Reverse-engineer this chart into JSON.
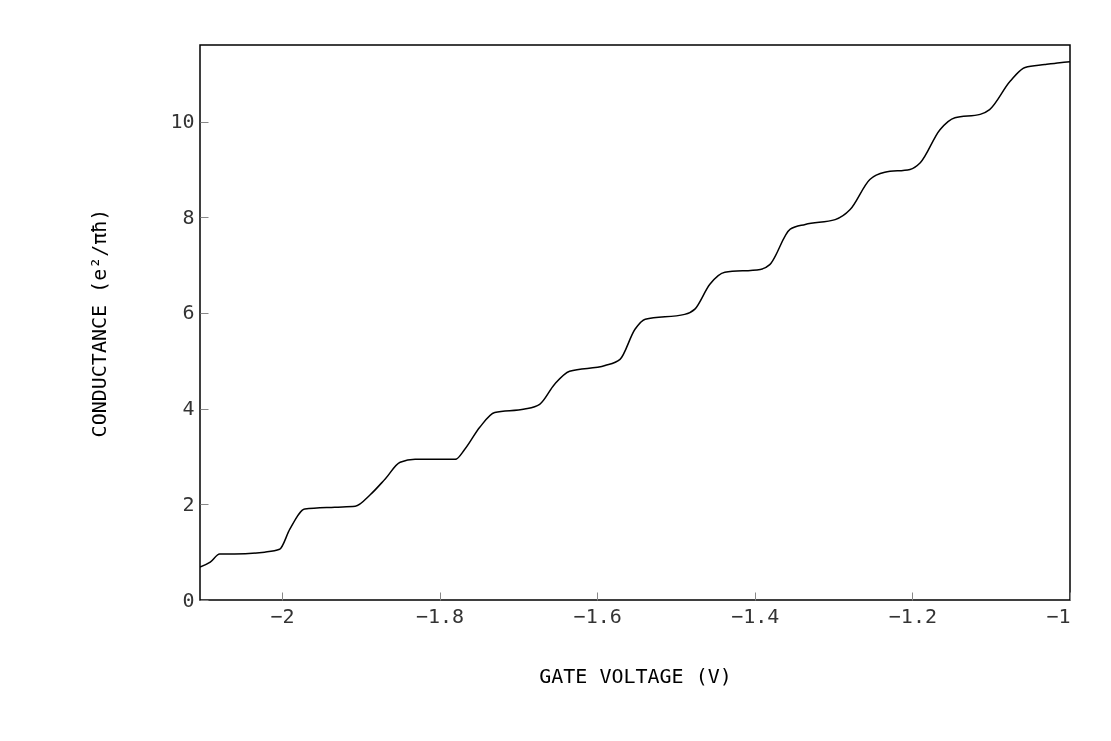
{
  "chart_data": {
    "type": "line",
    "xlabel": "GATE VOLTAGE (V)",
    "ylabel": "CONDUCTANCE (e²/πħ)",
    "x": [
      -2.104,
      -2.091,
      -2.079,
      -2.06,
      -2.022,
      -2.003,
      -1.99,
      -1.971,
      -1.933,
      -1.907,
      -1.888,
      -1.869,
      -1.85,
      -1.831,
      -1.78,
      -1.768,
      -1.749,
      -1.73,
      -1.692,
      -1.673,
      -1.654,
      -1.635,
      -1.59,
      -1.571,
      -1.552,
      -1.539,
      -1.489,
      -1.476,
      -1.457,
      -1.438,
      -1.393,
      -1.381,
      -1.355,
      -1.336,
      -1.298,
      -1.279,
      -1.254,
      -1.235,
      -1.203,
      -1.19,
      -1.165,
      -1.146,
      -1.114,
      -1.102,
      -1.076,
      -1.057,
      -1.032,
      -1.013,
      -1.0
    ],
    "series": [
      {
        "color": "#000000",
        "values": [
          0.69,
          0.79,
          0.96,
          0.96,
          1.0,
          1.06,
          1.48,
          1.9,
          1.94,
          1.96,
          2.2,
          2.53,
          2.88,
          2.94,
          2.94,
          3.15,
          3.61,
          3.92,
          3.99,
          4.09,
          4.51,
          4.78,
          4.9,
          5.03,
          5.66,
          5.87,
          5.97,
          6.08,
          6.6,
          6.85,
          6.91,
          7.01,
          7.75,
          7.85,
          7.95,
          8.16,
          8.79,
          8.94,
          9.0,
          9.14,
          9.83,
          10.08,
          10.15,
          10.25,
          10.84,
          11.13,
          11.19,
          11.23,
          11.25
        ]
      }
    ],
    "xlim": [
      -2.104,
      -1.0
    ],
    "xticks": [
      -2,
      -1.8,
      -1.6,
      -1.4,
      -1.2,
      -1
    ],
    "ylim": [
      0,
      11.6
    ],
    "yticks": [
      0,
      2,
      4,
      6,
      8,
      10
    ],
    "grid": false
  }
}
